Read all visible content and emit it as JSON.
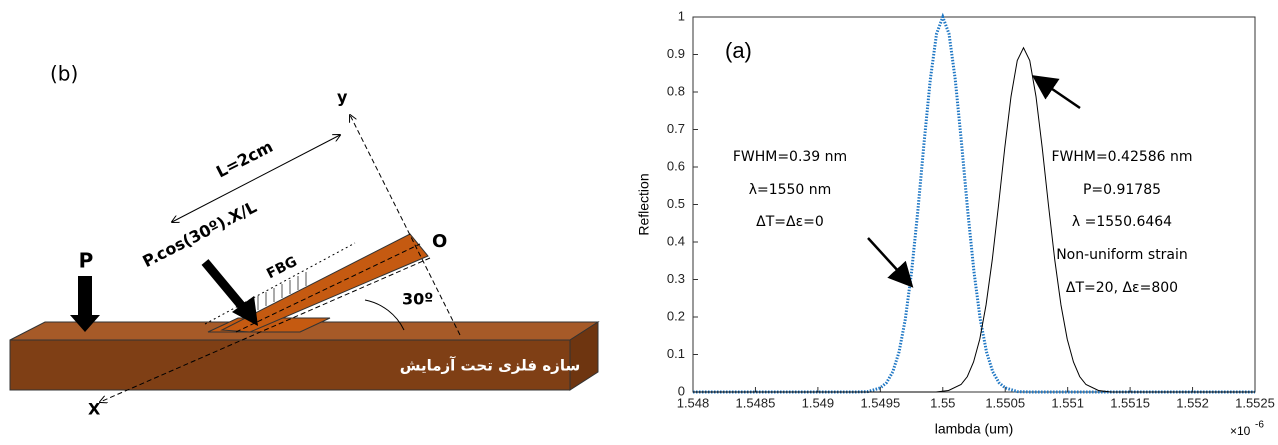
{
  "diagram": {
    "panel_label": "(b)",
    "y_axis_label": "y",
    "x_axis_label": "X",
    "length_label": "L=2cm",
    "force_label": "P.cos(30º).X/L",
    "fbg_label": "FBG",
    "load_label": "P",
    "origin_label": "O",
    "angle_label": "30º",
    "structure_label": "سازه فلزی تحت آزمایش"
  },
  "chart_data": {
    "type": "line",
    "panel_label": "(a)",
    "x_label": "lambda (um)",
    "y_label": "Reflection",
    "x_multiplier": "×10",
    "x_exponent": "-6",
    "xlim": [
      1.548e-06,
      1.5525e-06
    ],
    "ylim": [
      0,
      1
    ],
    "xticks": [
      {
        "value": 1.548e-06,
        "label": "1.548"
      },
      {
        "value": 1.5485e-06,
        "label": "1.5485"
      },
      {
        "value": 1.549e-06,
        "label": "1.549"
      },
      {
        "value": 1.5495e-06,
        "label": "1.5495"
      },
      {
        "value": 1.55e-06,
        "label": "1.55"
      },
      {
        "value": 1.5505e-06,
        "label": "1.5505"
      },
      {
        "value": 1.551e-06,
        "label": "1.551"
      },
      {
        "value": 1.5515e-06,
        "label": "1.5515"
      },
      {
        "value": 1.552e-06,
        "label": "1.552"
      },
      {
        "value": 1.5525e-06,
        "label": "1.5525"
      }
    ],
    "yticks": [
      0,
      0.1,
      0.2,
      0.3,
      0.4,
      0.5,
      0.6,
      0.7,
      0.8,
      0.9,
      1
    ],
    "grid": false,
    "series": [
      {
        "color": "#1f77c4",
        "line_style": "dotted",
        "x": [
          1.548e-06,
          1.5493e-06,
          1.5494e-06,
          1.5495e-06,
          1.54955e-06,
          1.5496e-06,
          1.54965e-06,
          1.5497e-06,
          1.54975e-06,
          1.5498e-06,
          1.54985e-06,
          1.5499e-06,
          1.54995e-06,
          1.55e-06,
          1.55005e-06,
          1.5501e-06,
          1.55015e-06,
          1.5502e-06,
          1.55025e-06,
          1.5503e-06,
          1.55035e-06,
          1.5504e-06,
          1.55045e-06,
          1.5505e-06,
          1.5506e-06,
          1.5507e-06,
          1.5525e-06
        ],
        "values": [
          0,
          0,
          0.001,
          0.011,
          0.025,
          0.054,
          0.107,
          0.194,
          0.32,
          0.482,
          0.664,
          0.833,
          0.955,
          1,
          0.955,
          0.833,
          0.664,
          0.482,
          0.32,
          0.194,
          0.107,
          0.054,
          0.025,
          0.011,
          0.001,
          0,
          0
        ]
      },
      {
        "color": "#000000",
        "line_style": "solid",
        "x": [
          1.548e-06,
          1.5499464e-06,
          1.5500464e-06,
          1.5501464e-06,
          1.5501964e-06,
          1.5502464e-06,
          1.5502964e-06,
          1.5503464e-06,
          1.5503964e-06,
          1.5504464e-06,
          1.5504964e-06,
          1.5505464e-06,
          1.5505964e-06,
          1.5506464e-06,
          1.5506964e-06,
          1.5507464e-06,
          1.5507964e-06,
          1.5508464e-06,
          1.5508964e-06,
          1.5509464e-06,
          1.5509964e-06,
          1.5510464e-06,
          1.5510964e-06,
          1.5511464e-06,
          1.5512464e-06,
          1.5513464e-06,
          1.5525e-06
        ],
        "values": [
          0,
          0,
          0.004,
          0.02,
          0.041,
          0.08,
          0.141,
          0.232,
          0.353,
          0.498,
          0.651,
          0.788,
          0.884,
          0.918,
          0.884,
          0.788,
          0.651,
          0.498,
          0.353,
          0.232,
          0.141,
          0.08,
          0.041,
          0.02,
          0.004,
          0,
          0
        ]
      }
    ],
    "annotations": [
      "FWHM=0.39 nm",
      "λ=1550 nm",
      "ΔT=Δε=0",
      "FWHM=0.42586 nm",
      "P=0.91785",
      "λ =1550.6464",
      "Non-uniform strain",
      "ΔT=20, Δε=800"
    ]
  }
}
